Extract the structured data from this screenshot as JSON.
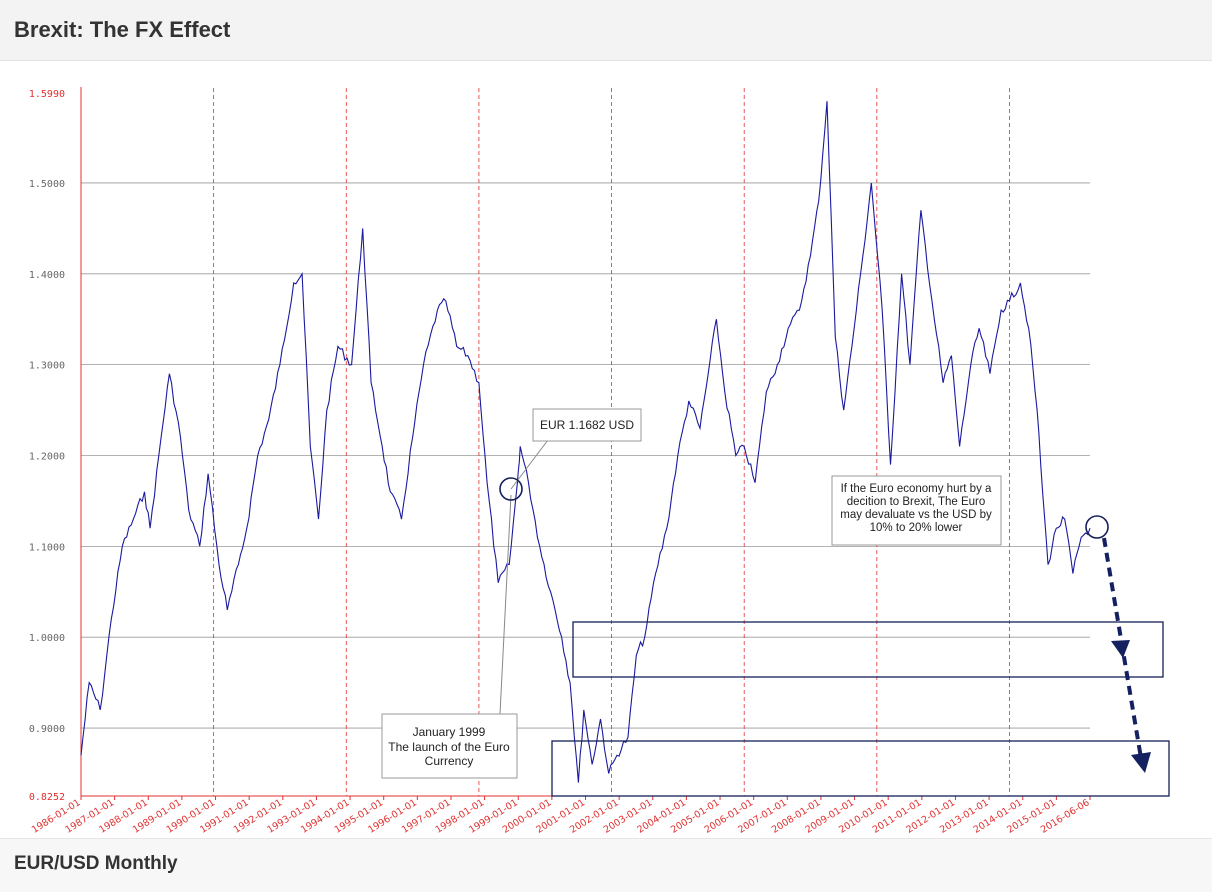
{
  "header": {
    "title": "Brexit: The FX Effect"
  },
  "footer": {
    "subtitle": "EUR/USD Monthly"
  },
  "colors": {
    "series": "#1a1aa0",
    "guide": "#e03030",
    "grid": "#9a9a9a",
    "box": "#15205a",
    "arrow": "#152060"
  },
  "annotations": {
    "eur_label": "EUR 1.1682 USD",
    "launch_line1": "January 1999",
    "launch_line2": "The launch of the Euro",
    "launch_line3": "Currency",
    "brexit_line1": "If the Euro economy hurt by a",
    "brexit_line2": "decition to Brexit, The Euro",
    "brexit_line3": "may devaluate vs the USD by",
    "brexit_line4": "10% to 20% lower"
  },
  "chart_data": {
    "type": "line",
    "title": "",
    "xlabel": "",
    "ylabel": "",
    "ylim": [
      0.8252,
      1.599
    ],
    "y_ticks": [
      "1.5990",
      "1.5000",
      "1.4000",
      "1.3000",
      "1.2000",
      "1.1000",
      "1.0000",
      "0.9000",
      "0.8252"
    ],
    "x_ticks": [
      "1986-01-01",
      "1987-01-01",
      "1988-01-01",
      "1989-01-01",
      "1990-01-01",
      "1991-01-01",
      "1992-01-01",
      "1993-01-01",
      "1994-01-01",
      "1995-01-01",
      "1996-01-01",
      "1997-01-01",
      "1998-01-01",
      "1999-01-01",
      "2000-01-01",
      "2001-01-01",
      "2002-01-01",
      "2003-01-01",
      "2004-01-01",
      "2005-01-01",
      "2006-01-01",
      "2007-01-01",
      "2008-01-01",
      "2009-01-01",
      "2010-01-01",
      "2011-01-01",
      "2012-01-01",
      "2013-01-01",
      "2014-01-01",
      "2015-01-01",
      "2016-06-06"
    ],
    "grid": "horizontal",
    "series": [
      {
        "points": [
          [
            "1986-01-01",
            0.87
          ],
          [
            "1986-04-01",
            0.95
          ],
          [
            "1986-08-01",
            0.92
          ],
          [
            "1986-12-01",
            1.02
          ],
          [
            "1987-04-01",
            1.1
          ],
          [
            "1987-08-01",
            1.13
          ],
          [
            "1987-12-01",
            1.16
          ],
          [
            "1988-02-01",
            1.12
          ],
          [
            "1988-06-01",
            1.22
          ],
          [
            "1988-09-01",
            1.29
          ],
          [
            "1989-01-01",
            1.22
          ],
          [
            "1989-04-01",
            1.14
          ],
          [
            "1989-08-01",
            1.1
          ],
          [
            "1989-11-01",
            1.18
          ],
          [
            "1990-03-01",
            1.08
          ],
          [
            "1990-06-01",
            1.03
          ],
          [
            "1990-10-01",
            1.08
          ],
          [
            "1991-01-01",
            1.12
          ],
          [
            "1991-05-01",
            1.2
          ],
          [
            "1991-09-01",
            1.24
          ],
          [
            "1992-01-01",
            1.3
          ],
          [
            "1992-06-01",
            1.39
          ],
          [
            "1992-09-01",
            1.4
          ],
          [
            "1992-12-01",
            1.21
          ],
          [
            "1993-03-01",
            1.13
          ],
          [
            "1993-06-01",
            1.25
          ],
          [
            "1993-10-01",
            1.32
          ],
          [
            "1994-03-01",
            1.3
          ],
          [
            "1994-07-01",
            1.45
          ],
          [
            "1994-10-01",
            1.28
          ],
          [
            "1995-02-01",
            1.21
          ],
          [
            "1995-05-01",
            1.16
          ],
          [
            "1995-09-01",
            1.13
          ],
          [
            "1996-01-01",
            1.22
          ],
          [
            "1996-05-01",
            1.3
          ],
          [
            "1996-10-01",
            1.36
          ],
          [
            "1997-01-01",
            1.37
          ],
          [
            "1997-05-01",
            1.32
          ],
          [
            "1997-09-01",
            1.31
          ],
          [
            "1998-01-01",
            1.28
          ],
          [
            "1998-04-01",
            1.17
          ],
          [
            "1998-08-01",
            1.06
          ],
          [
            "1998-12-01",
            1.08
          ],
          [
            "1999-03-01",
            1.17
          ],
          [
            "1999-04-01",
            1.21
          ],
          [
            "1999-07-01",
            1.17
          ],
          [
            "1999-11-01",
            1.1
          ],
          [
            "2000-03-01",
            1.05
          ],
          [
            "2000-07-01",
            1.0
          ],
          [
            "2000-10-01",
            0.95
          ],
          [
            "2001-01-01",
            0.84
          ],
          [
            "2001-03-01",
            0.92
          ],
          [
            "2001-06-01",
            0.86
          ],
          [
            "2001-09-01",
            0.91
          ],
          [
            "2001-12-01",
            0.85
          ],
          [
            "2002-03-01",
            0.87
          ],
          [
            "2002-07-01",
            0.89
          ],
          [
            "2002-10-01",
            0.98
          ],
          [
            "2003-01-01",
            1.0
          ],
          [
            "2003-05-01",
            1.07
          ],
          [
            "2003-09-01",
            1.12
          ],
          [
            "2004-01-01",
            1.2
          ],
          [
            "2004-05-01",
            1.26
          ],
          [
            "2004-09-01",
            1.23
          ],
          [
            "2004-12-01",
            1.29
          ],
          [
            "2005-03-01",
            1.35
          ],
          [
            "2005-06-01",
            1.27
          ],
          [
            "2005-10-01",
            1.2
          ],
          [
            "2006-01-01",
            1.21
          ],
          [
            "2006-05-01",
            1.17
          ],
          [
            "2006-09-01",
            1.27
          ],
          [
            "2007-01-01",
            1.3
          ],
          [
            "2007-05-01",
            1.34
          ],
          [
            "2007-09-01",
            1.36
          ],
          [
            "2008-01-01",
            1.42
          ],
          [
            "2008-04-01",
            1.48
          ],
          [
            "2008-07-01",
            1.59
          ],
          [
            "2008-10-01",
            1.33
          ],
          [
            "2009-01-01",
            1.25
          ],
          [
            "2009-04-01",
            1.32
          ],
          [
            "2009-08-01",
            1.42
          ],
          [
            "2009-11-01",
            1.5
          ],
          [
            "2010-03-01",
            1.36
          ],
          [
            "2010-06-01",
            1.19
          ],
          [
            "2010-10-01",
            1.4
          ],
          [
            "2011-01-01",
            1.3
          ],
          [
            "2011-05-01",
            1.47
          ],
          [
            "2011-09-01",
            1.37
          ],
          [
            "2012-01-01",
            1.28
          ],
          [
            "2012-04-01",
            1.31
          ],
          [
            "2012-07-01",
            1.21
          ],
          [
            "2012-11-01",
            1.3
          ],
          [
            "2013-02-01",
            1.34
          ],
          [
            "2013-06-01",
            1.29
          ],
          [
            "2013-10-01",
            1.36
          ],
          [
            "2014-01-01",
            1.37
          ],
          [
            "2014-05-01",
            1.39
          ],
          [
            "2014-08-01",
            1.34
          ],
          [
            "2014-11-01",
            1.25
          ],
          [
            "2015-01-01",
            1.16
          ],
          [
            "2015-03-01",
            1.08
          ],
          [
            "2015-06-01",
            1.12
          ],
          [
            "2015-09-01",
            1.13
          ],
          [
            "2015-12-01",
            1.07
          ],
          [
            "2016-03-01",
            1.11
          ],
          [
            "2016-06-06",
            1.12
          ]
        ]
      }
    ]
  }
}
